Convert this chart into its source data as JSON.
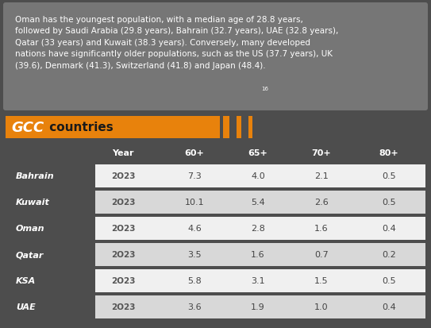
{
  "fig_w": 5.43,
  "fig_h": 4.14,
  "dpi": 100,
  "bg_color": "#4d4d4d",
  "text_box_color": "#767676",
  "text_box_text": "Oman has the youngest population, with a median age of 28.8 years,\nfollowed by Saudi Arabia (29.8 years), Bahrain (32.7 years), UAE (32.8 years),\nQatar (33 years) and Kuwait (38.3 years). Conversely, many developed\nnations have significantly older populations, such as the US (37.7 years), UK\n(39.6), Denmark (41.3), Switzerland (41.8) and Japan (48.4).",
  "superscript": "16",
  "orange_color": "#e8820c",
  "gcc_label": "GCC",
  "countries_label": " countries",
  "table_header": [
    "Year",
    "60+",
    "65+",
    "70+",
    "80+"
  ],
  "countries": [
    "Bahrain",
    "Kuwait",
    "Oman",
    "Qatar",
    "KSA",
    "UAE"
  ],
  "year": "2O23",
  "data": [
    [
      "7.3",
      "4.0",
      "2.1",
      "0.5"
    ],
    [
      "10.1",
      "5.4",
      "2.6",
      "0.5"
    ],
    [
      "4.6",
      "2.8",
      "1.6",
      "0.4"
    ],
    [
      "3.5",
      "1.6",
      "0.7",
      "0.2"
    ],
    [
      "5.8",
      "3.1",
      "1.5",
      "0.5"
    ],
    [
      "3.6",
      "1.9",
      "1.0",
      "0.4"
    ]
  ],
  "row_colors": [
    "#f0f0f0",
    "#d8d8d8"
  ],
  "stripe_colors": [
    "#e8820c",
    "#4d4d4d",
    "#e8820c",
    "#4d4d4d",
    "#e8820c"
  ],
  "stripe_widths": [
    8,
    5,
    6,
    5,
    5
  ]
}
